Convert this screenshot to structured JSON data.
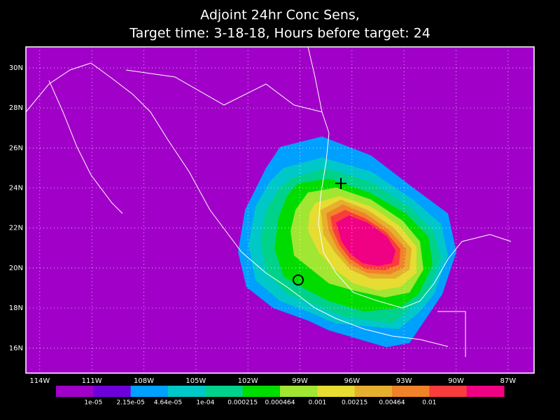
{
  "header": {
    "title_lines": [
      "Adjoint 24hr Conc Sens,",
      "Target time: 3-18-18, Hours before target: 24"
    ]
  },
  "map": {
    "xlim": [
      -114.8,
      -85.5
    ],
    "ylim": [
      14.75,
      31.05
    ],
    "lon_ticks": [
      {
        "value": -114,
        "label": "114W"
      },
      {
        "value": -111,
        "label": "111W"
      },
      {
        "value": -108,
        "label": "108W"
      },
      {
        "value": -105,
        "label": "105W"
      },
      {
        "value": -102,
        "label": "102W"
      },
      {
        "value": -99,
        "label": "99W"
      },
      {
        "value": -96,
        "label": "96W"
      },
      {
        "value": -93,
        "label": "93W"
      },
      {
        "value": -90,
        "label": "90W"
      },
      {
        "value": -87,
        "label": "87W"
      }
    ],
    "lat_ticks": [
      {
        "value": 16,
        "label": "16N"
      },
      {
        "value": 18,
        "label": "18N"
      },
      {
        "value": 20,
        "label": "20N"
      },
      {
        "value": 22,
        "label": "22N"
      },
      {
        "value": 24,
        "label": "24N"
      },
      {
        "value": 26,
        "label": "26N"
      },
      {
        "value": 28,
        "label": "28N"
      },
      {
        "value": 30,
        "label": "30N"
      }
    ],
    "grid": true
  },
  "colorbar": {
    "colors": [
      "#a000c8",
      "#6e00dc",
      "#00a0ff",
      "#00c8c8",
      "#00d28c",
      "#00dc00",
      "#a0e632",
      "#e6dc32",
      "#e6af2d",
      "#f08228",
      "#fa3c3c",
      "#f00082"
    ],
    "labels": [
      "1e-05",
      "2.15e-05",
      "4.64e-05",
      "1e-04",
      "0.000215",
      "0.000464",
      "0.001",
      "0.00215",
      "0.00464",
      "0.01"
    ]
  }
}
